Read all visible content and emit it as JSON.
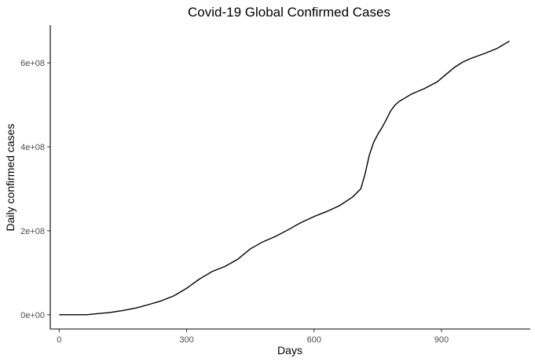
{
  "chart_data": {
    "type": "line",
    "title": "Covid-19 Global Confirmed Cases",
    "xlabel": "Days",
    "ylabel": "Daily confirmed cases",
    "xlim": [
      -21,
      1109
    ],
    "ylim": [
      -34000000,
      690000000
    ],
    "x_ticks": [
      {
        "value": 0,
        "label": "0"
      },
      {
        "value": 300,
        "label": "300"
      },
      {
        "value": 600,
        "label": "600"
      },
      {
        "value": 900,
        "label": "900"
      }
    ],
    "y_ticks": [
      {
        "value": 0,
        "label": "0e+00"
      },
      {
        "value": 200000000,
        "label": "2e+08"
      },
      {
        "value": 400000000,
        "label": "4e+08"
      },
      {
        "value": 600000000,
        "label": "6e+08"
      }
    ],
    "grid": false,
    "legend": "none",
    "line_color": "#000000",
    "series": [
      {
        "x": [
          0,
          30,
          60,
          70,
          90,
          120,
          150,
          180,
          210,
          240,
          270,
          300,
          330,
          360,
          390,
          420,
          450,
          480,
          510,
          540,
          570,
          600,
          630,
          660,
          690,
          710,
          720,
          730,
          740,
          750,
          760,
          770,
          780,
          790,
          800,
          810,
          830,
          860,
          890,
          910,
          930,
          950,
          970,
          1000,
          1030,
          1060
        ],
        "y": [
          0,
          0,
          0,
          500000,
          2500000,
          5500000,
          10000000,
          16000000,
          24000000,
          33000000,
          45000000,
          63000000,
          85000000,
          103000000,
          115000000,
          132000000,
          157000000,
          174000000,
          187000000,
          203000000,
          220000000,
          234000000,
          246000000,
          260000000,
          280000000,
          300000000,
          335000000,
          380000000,
          410000000,
          430000000,
          446000000,
          465000000,
          485000000,
          499000000,
          508000000,
          514000000,
          526000000,
          539000000,
          555000000,
          572000000,
          589000000,
          602000000,
          611000000,
          622000000,
          634000000,
          652000000
        ]
      }
    ]
  }
}
